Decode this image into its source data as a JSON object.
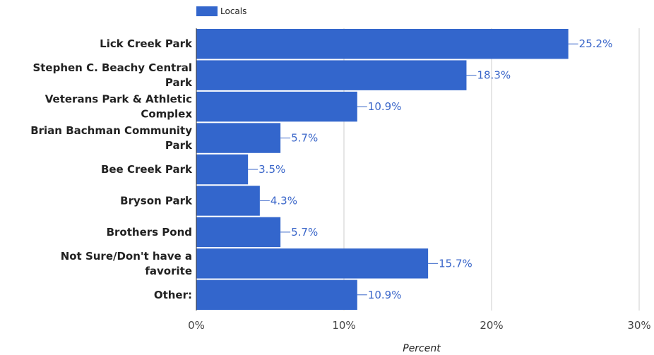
{
  "chart_data": {
    "type": "bar",
    "orientation": "horizontal",
    "categories": [
      [
        "Lick Creek Park"
      ],
      [
        "Stephen C. Beachy Central",
        "Park"
      ],
      [
        "Veterans Park & Athletic",
        "Complex"
      ],
      [
        "Brian Bachman Community",
        "Park"
      ],
      [
        "Bee Creek Park"
      ],
      [
        "Bryson Park"
      ],
      [
        "Brothers Pond"
      ],
      [
        "Not Sure/Don't have a",
        "favorite"
      ],
      [
        "Other:"
      ]
    ],
    "series": [
      {
        "name": "Locals",
        "color": "#3366cc",
        "values": [
          25.2,
          18.3,
          10.9,
          5.7,
          3.5,
          4.3,
          5.7,
          15.7,
          10.9
        ],
        "value_labels": [
          "25.2%",
          "18.3%",
          "10.9%",
          "5.7%",
          "3.5%",
          "4.3%",
          "5.7%",
          "15.7%",
          "10.9%"
        ]
      }
    ],
    "xlim": [
      0,
      30
    ],
    "xticks": [
      0,
      10,
      20,
      30
    ],
    "xtick_labels": [
      "0%",
      "10%",
      "20%",
      "30%"
    ],
    "xlabel": "Percent",
    "grid": true,
    "legend_position": "top-left"
  }
}
